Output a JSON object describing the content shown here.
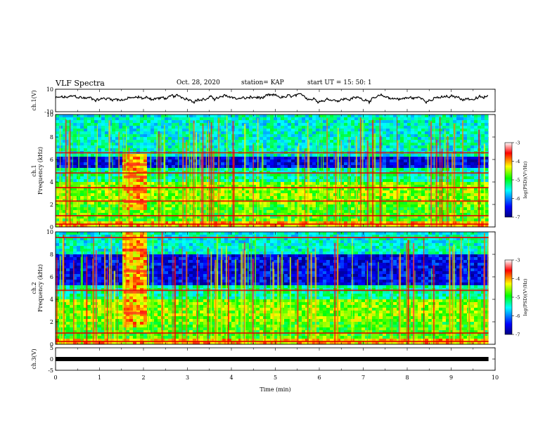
{
  "header": {
    "title": "VLF Spectra",
    "date": "Oct. 28, 2020",
    "station": "station= KAP",
    "start": "start  UT  =   15: 50: 1"
  },
  "chart_data": [
    {
      "type": "line",
      "panel": "ch1-waveform",
      "ylabel": "ch.1(V)",
      "ylim": [
        -10,
        10
      ],
      "yticks": [
        "10",
        "-10"
      ],
      "x_range": [
        0,
        9.85
      ],
      "approx_level": 2,
      "approx_range": [
        -3,
        6
      ],
      "color": "#000000"
    },
    {
      "type": "heatmap",
      "panel": "ch1-spectrogram",
      "ylabel": "ch.1 Frequency (kHz)",
      "ylim": [
        0,
        10
      ],
      "yticks": [
        "0",
        "2",
        "4",
        "6",
        "8",
        "10"
      ],
      "x_range": [
        0,
        9.85
      ],
      "features": {
        "broadband_burst": {
          "x": [
            1.55,
            2.08
          ],
          "f": [
            1.5,
            6.5
          ]
        },
        "red_lines_khz": [
          0.25,
          1.0,
          2.3,
          3.5,
          4.8,
          6.6
        ],
        "quiet_band_khz": [
          5.2,
          6.2
        ]
      },
      "colorbar": {
        "label": "log(PSD)(V²/Hz)",
        "range": [
          -7,
          -3
        ],
        "ticks": [
          "-3",
          "-4",
          "-5",
          "-6",
          "-7"
        ],
        "colors": [
          "#000080",
          "#0000ff",
          "#00ffff",
          "#00ff00",
          "#ffff00",
          "#ff0000",
          "#ffffff"
        ]
      }
    },
    {
      "type": "heatmap",
      "panel": "ch2-spectrogram",
      "ylabel": "ch.2 Frequency (kHz)",
      "ylim": [
        0,
        10
      ],
      "yticks": [
        "0",
        "2",
        "4",
        "6",
        "8",
        "10"
      ],
      "x_range": [
        0,
        9.85
      ],
      "features": {
        "broadband_burst": {
          "x": [
            1.55,
            2.08
          ],
          "f": [
            1.5,
            10
          ]
        },
        "red_lines_khz": [
          0.25,
          1.0,
          4.8,
          9.5
        ],
        "quiet_band_khz": [
          5.2,
          8.0
        ]
      },
      "colorbar": {
        "label": "log(PSD)(V²/Hz)",
        "range": [
          -7,
          -3
        ],
        "ticks": [
          "-3",
          "-4",
          "-5",
          "-6",
          "-7"
        ],
        "colors": [
          "#000080",
          "#0000ff",
          "#00ffff",
          "#00ff00",
          "#ffff00",
          "#ff0000",
          "#ffffff"
        ]
      }
    },
    {
      "type": "line",
      "panel": "ch3-waveform",
      "ylabel": "ch.3(V)",
      "ylim": [
        -5,
        5
      ],
      "yticks": [
        "5",
        "0",
        "-5"
      ],
      "x_range": [
        0,
        9.85
      ],
      "approx_level": 0,
      "color": "#000000"
    }
  ],
  "xaxis": {
    "label": "Time  (min)",
    "xlim": [
      0,
      10
    ],
    "ticks": [
      "0",
      "1",
      "2",
      "3",
      "4",
      "5",
      "6",
      "7",
      "8",
      "9",
      "10"
    ]
  }
}
